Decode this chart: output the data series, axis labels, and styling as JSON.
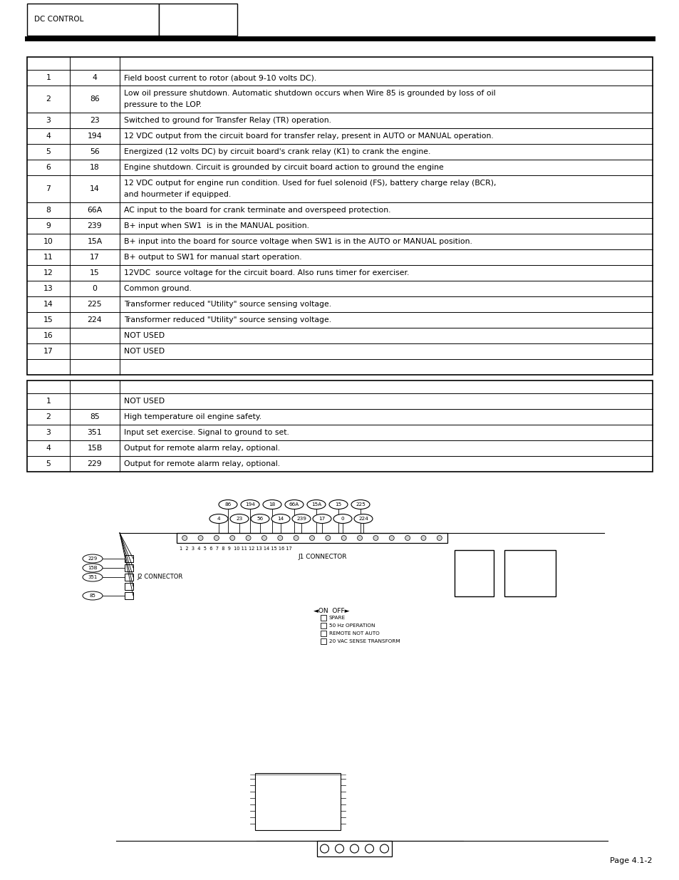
{
  "title_box_text": "DC CONTROL",
  "table1_rows": [
    [
      "",
      "",
      ""
    ],
    [
      "1",
      "4",
      "Field boost current to rotor (about 9-10 volts DC)."
    ],
    [
      "2",
      "86",
      "Low oil pressure shutdown. Automatic shutdown occurs when Wire 85 is grounded by loss of oil\npressure to the LOP."
    ],
    [
      "3",
      "23",
      "Switched to ground for Transfer Relay (TR) operation."
    ],
    [
      "4",
      "194",
      "12 VDC output from the circuit board for transfer relay, present in AUTO or MANUAL operation."
    ],
    [
      "5",
      "56",
      "Energized (12 volts DC) by circuit board's crank relay (K1) to crank the engine."
    ],
    [
      "6",
      "18",
      "Engine shutdown. Circuit is grounded by circuit board action to ground the engine"
    ],
    [
      "7",
      "14",
      "12 VDC output for engine run condition. Used for fuel solenoid (FS), battery charge relay (BCR),\nand hourmeter if equipped."
    ],
    [
      "8",
      "66A",
      "AC input to the board for crank terminate and overspeed protection."
    ],
    [
      "9",
      "239",
      "B+ input when SW1  is in the MANUAL position."
    ],
    [
      "10",
      "15A",
      "B+ input into the board for source voltage when SW1 is in the AUTO or MANUAL position."
    ],
    [
      "11",
      "17",
      "B+ output to SW1 for manual start operation."
    ],
    [
      "12",
      "15",
      "12VDC  source voltage for the circuit board. Also runs timer for exerciser."
    ],
    [
      "13",
      "0",
      "Common ground."
    ],
    [
      "14",
      "225",
      "Transformer reduced \"Utility\" source sensing voltage."
    ],
    [
      "15",
      "224",
      "Transformer reduced \"Utility\" source sensing voltage."
    ],
    [
      "16",
      "",
      "NOT USED"
    ],
    [
      "17",
      "",
      "NOT USED"
    ],
    [
      "",
      "",
      ""
    ]
  ],
  "table2_rows": [
    [
      "1",
      "",
      "NOT USED"
    ],
    [
      "2",
      "85",
      "High temperature oil engine safety."
    ],
    [
      "3",
      "351",
      "Input set exercise. Signal to ground to set."
    ],
    [
      "4",
      "15B",
      "Output for remote alarm relay, optional."
    ],
    [
      "5",
      "229",
      "Output for remote alarm relay, optional."
    ]
  ],
  "page_label": "Page 4.1-2",
  "top_oval_labels": [
    "86",
    "194",
    "18",
    "66A",
    "15A",
    "15",
    "225"
  ],
  "bot_oval_labels": [
    "4",
    "23",
    "56",
    "14",
    "239",
    "17",
    "0",
    "224"
  ],
  "j2_pin_labels": [
    "229",
    "15B",
    "351",
    "",
    "85"
  ],
  "dip_labels": [
    "SPARE",
    "50 Hz OPERATION",
    "REMOTE NOT AUTO",
    "20 VAC SENSE TRANSFORM"
  ]
}
